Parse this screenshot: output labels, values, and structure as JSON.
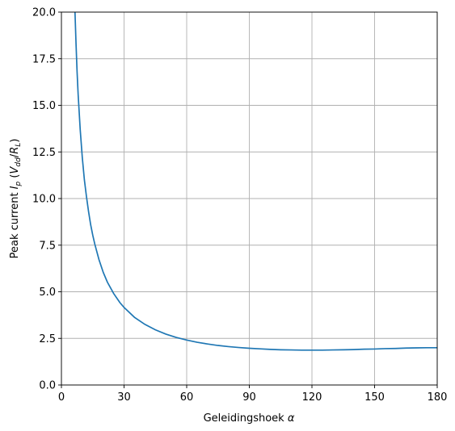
{
  "chart_data": {
    "type": "line",
    "xlabel_text": "Geleidingshoek ",
    "xlabel_symbol": "α",
    "ylabel_parts": {
      "prefix": "Peak current ",
      "I": "I",
      "p": "p",
      "open": " (",
      "V": "V",
      "dd": "dd",
      "slash": "/",
      "R": "R",
      "L": "L",
      "close": ")"
    },
    "xlim": [
      0,
      180
    ],
    "ylim": [
      0,
      20
    ],
    "xticks": [
      0,
      30,
      60,
      90,
      120,
      150,
      180
    ],
    "xtick_labels": [
      "0",
      "30",
      "60",
      "90",
      "120",
      "150",
      "180"
    ],
    "yticks": [
      0,
      2.5,
      5,
      7.5,
      10,
      12.5,
      15,
      17.5,
      20
    ],
    "ytick_labels": [
      "0.0",
      "2.5",
      "5.0",
      "7.5",
      "10.0",
      "12.5",
      "15.0",
      "17.5",
      "20.0"
    ],
    "grid": true,
    "series": [
      {
        "color": "#1f77b4",
        "x": [
          6.5,
          7,
          7.5,
          8,
          9,
          10,
          11,
          12,
          13,
          14,
          15,
          16,
          18,
          20,
          22,
          25,
          28,
          30,
          35,
          40,
          45,
          50,
          55,
          60,
          65,
          70,
          75,
          80,
          85,
          90,
          95,
          100,
          105,
          110,
          115,
          120,
          125,
          130,
          135,
          140,
          145,
          150,
          155,
          160,
          165,
          170,
          175,
          180
        ],
        "y": [
          20.0,
          18.3,
          16.8,
          15.6,
          13.7,
          12.2,
          11.0,
          10.1,
          9.3,
          8.6,
          8.04,
          7.55,
          6.72,
          6.05,
          5.52,
          4.91,
          4.42,
          4.16,
          3.63,
          3.25,
          2.96,
          2.73,
          2.55,
          2.41,
          2.29,
          2.2,
          2.12,
          2.06,
          2.01,
          1.97,
          1.94,
          1.91,
          1.89,
          1.88,
          1.87,
          1.87,
          1.87,
          1.88,
          1.89,
          1.9,
          1.92,
          1.93,
          1.95,
          1.96,
          1.98,
          1.99,
          2.0,
          2.0
        ]
      }
    ]
  }
}
